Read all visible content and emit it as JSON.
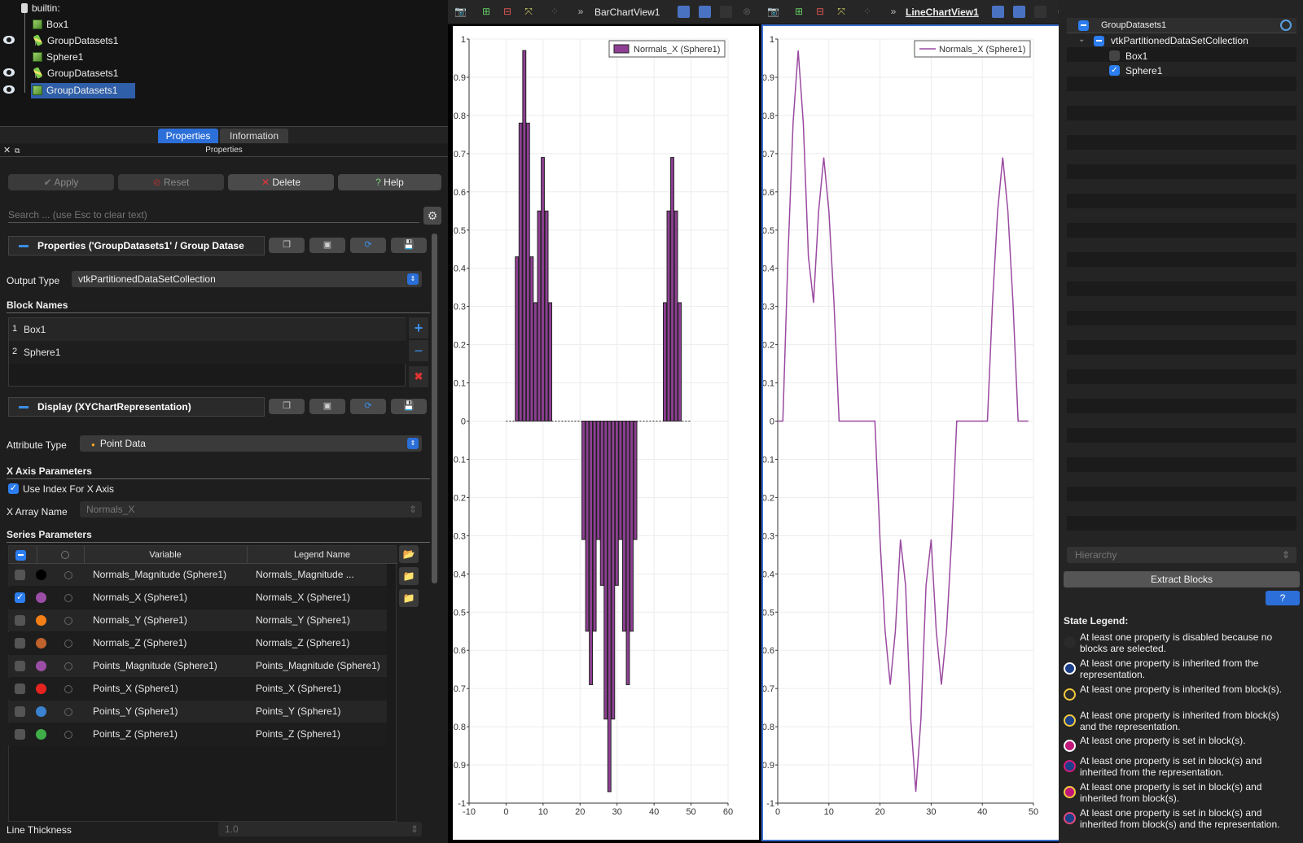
{
  "pipeline": {
    "items": [
      {
        "label": "builtin:",
        "icon": "server-icon",
        "visible": false,
        "selected": false
      },
      {
        "label": "Box1",
        "icon": "box-source-icon",
        "visible": false,
        "selected": false
      },
      {
        "label": "GroupDatasets1",
        "icon": "filter-icon",
        "visible": true,
        "selected": false
      },
      {
        "label": "Sphere1",
        "icon": "sphere-source-icon",
        "visible": false,
        "selected": false
      },
      {
        "label": "GroupDatasets1",
        "icon": "filter-icon",
        "visible": true,
        "selected": false
      },
      {
        "label": "GroupDatasets1",
        "icon": "group-icon",
        "visible": true,
        "selected": true
      }
    ]
  },
  "tabs": {
    "properties": "Properties",
    "information": "Information"
  },
  "panel_header": "Properties",
  "buttons": {
    "apply": "Apply",
    "reset": "Reset",
    "delete": "Delete",
    "help": "Help"
  },
  "search": {
    "placeholder": "Search ... (use Esc to clear text)"
  },
  "groups": {
    "properties": "Properties ('GroupDatasets1' / Group Datase",
    "display": "Display (XYChartRepresentation)"
  },
  "output_type": {
    "label": "Output Type",
    "value": "vtkPartitionedDataSetCollection"
  },
  "block_names": {
    "title": "Block Names",
    "rows": [
      {
        "index": "1",
        "name": "Box1"
      },
      {
        "index": "2",
        "name": "Sphere1"
      }
    ]
  },
  "attribute_type": {
    "label": "Attribute Type",
    "value": "Point Data"
  },
  "x_axis": {
    "title": "X Axis Parameters",
    "use_index_label": "Use Index For X Axis",
    "use_index_checked": true,
    "x_array_label": "X Array Name",
    "x_array_value": "Normals_X"
  },
  "series": {
    "title": "Series Parameters",
    "col_variable": "Variable",
    "col_legend": "Legend Name",
    "rows": [
      {
        "variable": "Normals_Magnitude (Sphere1)",
        "legend": "Normals_Magnitude ...",
        "color": "#000000",
        "checked": false
      },
      {
        "variable": "Normals_X (Sphere1)",
        "legend": "Normals_X (Sphere1)",
        "color": "#9b4ea5",
        "checked": true
      },
      {
        "variable": "Normals_Y (Sphere1)",
        "legend": "Normals_Y (Sphere1)",
        "color": "#f57f17",
        "checked": false
      },
      {
        "variable": "Normals_Z (Sphere1)",
        "legend": "Normals_Z (Sphere1)",
        "color": "#c0622c",
        "checked": false
      },
      {
        "variable": "Points_Magnitude (Sphere1)",
        "legend": "Points_Magnitude (Sphere1)",
        "color": "#9b4ea5",
        "checked": false
      },
      {
        "variable": "Points_X (Sphere1)",
        "legend": "Points_X (Sphere1)",
        "color": "#e52420",
        "checked": false
      },
      {
        "variable": "Points_Y (Sphere1)",
        "legend": "Points_Y (Sphere1)",
        "color": "#3b82d0",
        "checked": false
      },
      {
        "variable": "Points_Z (Sphere1)",
        "legend": "Points_Z (Sphere1)",
        "color": "#3fae49",
        "checked": false
      }
    ]
  },
  "line_thickness": {
    "label": "Line Thickness",
    "value": "1.0"
  },
  "bar_view": {
    "title": "BarChartView1"
  },
  "line_view": {
    "title": "LineChartView1"
  },
  "chart_data": [
    {
      "type": "bar",
      "legend": "Normals_X (Sphere1)",
      "legend_position": "top-right",
      "color": "#8e3f93",
      "xlim": [
        -10,
        60
      ],
      "ylim": [
        -1,
        1
      ],
      "xticks": [
        -10,
        0,
        10,
        20,
        30,
        40,
        50,
        60
      ],
      "yticks": [
        1,
        0.9,
        0.8,
        0.7,
        0.6,
        0.5,
        0.4,
        0.3,
        0.2,
        0.1,
        0,
        -0.1,
        -0.2,
        -0.3,
        -0.4,
        -0.5,
        -0.6,
        -0.7,
        -0.8,
        -0.9,
        -1
      ],
      "grid": true,
      "x": [
        0,
        1,
        2,
        3,
        4,
        5,
        6,
        7,
        8,
        9,
        10,
        11,
        12,
        13,
        14,
        15,
        16,
        17,
        18,
        19,
        20,
        21,
        22,
        23,
        24,
        25,
        26,
        27,
        28,
        29,
        30,
        31,
        32,
        33,
        34,
        35,
        36,
        37,
        38,
        39,
        40,
        41,
        42,
        43,
        44,
        45,
        46,
        47,
        48,
        49
      ],
      "values": [
        0,
        0,
        0.43,
        0.78,
        0.97,
        0.78,
        0.43,
        0.31,
        0.55,
        0.69,
        0.55,
        0.31,
        0,
        0,
        0,
        0,
        0,
        0,
        0,
        0,
        -0.31,
        -0.55,
        -0.69,
        -0.55,
        -0.31,
        -0.43,
        -0.78,
        -0.97,
        -0.78,
        -0.43,
        -0.31,
        -0.55,
        -0.69,
        -0.55,
        -0.31,
        0,
        0,
        0,
        0,
        0,
        0,
        0,
        0.31,
        0.55,
        0.69,
        0.55,
        0.31,
        0,
        0,
        0
      ]
    },
    {
      "type": "line",
      "legend": "Normals_X (Sphere1)",
      "legend_position": "top-right",
      "color": "#9a4aa0",
      "xlim": [
        0,
        50
      ],
      "ylim": [
        -1,
        1
      ],
      "xticks": [
        0,
        10,
        20,
        30,
        40,
        50
      ],
      "yticks": [
        1,
        0.9,
        0.8,
        0.7,
        0.6,
        0.5,
        0.4,
        0.3,
        0.2,
        0.1,
        0,
        -0.1,
        -0.2,
        -0.3,
        -0.4,
        -0.5,
        -0.6,
        -0.7,
        -0.8,
        -0.9,
        -1
      ],
      "grid": true,
      "x": [
        0,
        1,
        2,
        3,
        4,
        5,
        6,
        7,
        8,
        9,
        10,
        11,
        12,
        13,
        14,
        15,
        16,
        17,
        18,
        19,
        20,
        21,
        22,
        23,
        24,
        25,
        26,
        27,
        28,
        29,
        30,
        31,
        32,
        33,
        34,
        35,
        36,
        37,
        38,
        39,
        40,
        41,
        42,
        43,
        44,
        45,
        46,
        47,
        48,
        49
      ],
      "values": [
        0,
        0,
        0.43,
        0.78,
        0.97,
        0.78,
        0.43,
        0.31,
        0.55,
        0.69,
        0.55,
        0.31,
        0,
        0,
        0,
        0,
        0,
        0,
        0,
        0,
        -0.31,
        -0.55,
        -0.69,
        -0.55,
        -0.31,
        -0.43,
        -0.78,
        -0.97,
        -0.78,
        -0.43,
        -0.31,
        -0.55,
        -0.69,
        -0.55,
        -0.31,
        0,
        0,
        0,
        0,
        0,
        0,
        0,
        0.31,
        0.55,
        0.69,
        0.55,
        0.31,
        0,
        0,
        0
      ]
    }
  ],
  "block_tree": {
    "header": "GroupDatasets1",
    "root": "vtkPartitionedDataSetCollection",
    "children": [
      {
        "label": "Box1",
        "checked": false
      },
      {
        "label": "Sphere1",
        "checked": true
      }
    ]
  },
  "hierarchy_select": "Hierarchy",
  "extract_blocks": "Extract Blocks",
  "state_legend": {
    "title": "State Legend:",
    "items": [
      {
        "text": "At least one property is disabled because no blocks are selected.",
        "fill": "#2a2a2a",
        "ring": "#2a2a2a"
      },
      {
        "text": "At least one property is inherited from the representation.",
        "fill": "#1c3f8a",
        "ring": "#ffffff"
      },
      {
        "text": "At least one property is inherited from block(s).",
        "fill": "#2b2b2b",
        "ring": "#f3c93b"
      },
      {
        "text": "At least one property is inherited from block(s) and the representation.",
        "fill": "#1c3f8a",
        "ring": "#f3c93b"
      },
      {
        "text": "At least one property is set in block(s).",
        "fill": "#c0177a",
        "ring": "#ffffff"
      },
      {
        "text": "At least one property is set in block(s) and inherited from the representation.",
        "fill": "#1c3f8a",
        "ring": "#d81b7a"
      },
      {
        "text": "At least one property is set in block(s) and inherited from block(s).",
        "fill": "#c0177a",
        "ring": "#f3c93b"
      },
      {
        "text": "At least one property is set in block(s) and inherited from block(s) and the representation.",
        "fill": "#1c3f8a",
        "ring": "#e34b7a"
      }
    ]
  }
}
